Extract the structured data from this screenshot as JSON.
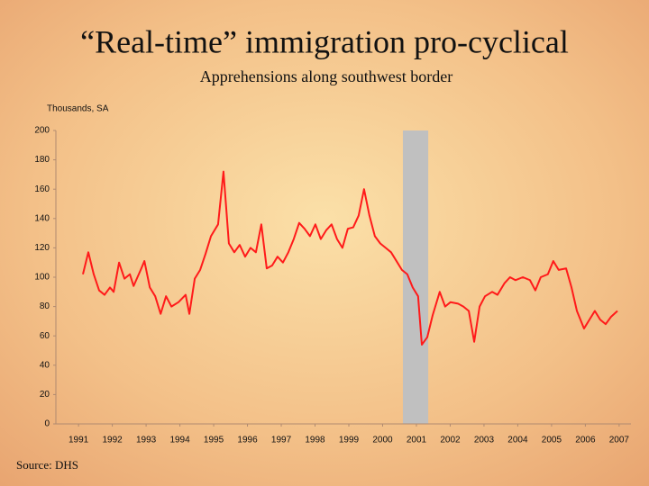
{
  "chart_data": {
    "type": "line",
    "title": "“Real-time” immigration pro-cyclical",
    "subtitle": "Apprehensions along southwest border",
    "y_label": "Thousands, SA",
    "source": "Source: DHS",
    "x": [
      1991.13,
      1991.29,
      1991.45,
      1991.61,
      1991.77,
      1991.93,
      1992.04,
      1992.2,
      1992.36,
      1992.52,
      1992.63,
      1992.84,
      1992.95,
      1993.11,
      1993.27,
      1993.43,
      1993.59,
      1993.75,
      1993.96,
      1994.17,
      1994.28,
      1994.44,
      1994.6,
      1994.76,
      1994.92,
      1995.13,
      1995.29,
      1995.45,
      1995.61,
      1995.77,
      1995.93,
      1996.09,
      1996.25,
      1996.41,
      1996.57,
      1996.73,
      1996.89,
      1997.05,
      1997.21,
      1997.37,
      1997.53,
      1997.69,
      1997.85,
      1998.01,
      1998.17,
      1998.33,
      1998.49,
      1998.65,
      1998.81,
      1998.97,
      1999.13,
      1999.29,
      1999.45,
      1999.61,
      1999.77,
      1999.93,
      2000.09,
      2000.25,
      2000.41,
      2000.57,
      2000.73,
      2000.89,
      2001.05,
      2001.16,
      2001.32,
      2001.48,
      2001.69,
      2001.85,
      2002.01,
      2002.23,
      2002.39,
      2002.55,
      2002.71,
      2002.87,
      2003.03,
      2003.24,
      2003.4,
      2003.61,
      2003.77,
      2003.93,
      2004.15,
      2004.36,
      2004.52,
      2004.68,
      2004.89,
      2005.05,
      2005.21,
      2005.43,
      2005.59,
      2005.75,
      2005.96,
      2006.12,
      2006.28,
      2006.44,
      2006.6,
      2006.76,
      2006.95
    ],
    "series": [
      {
        "name": "Apprehensions",
        "color": "#ff1a1a",
        "values": [
          102,
          117,
          102,
          91,
          88,
          93,
          90,
          110,
          99,
          102,
          94,
          105,
          111,
          93,
          87,
          75,
          87,
          80,
          83,
          88,
          75,
          99,
          105,
          116,
          128,
          136,
          172,
          123,
          117,
          122,
          114,
          120,
          117,
          136,
          106,
          108,
          114,
          110,
          117,
          126,
          137,
          133,
          128,
          136,
          126,
          132,
          136,
          126,
          120,
          133,
          134,
          142,
          160,
          142,
          128,
          123,
          120,
          117,
          111,
          105,
          102,
          93,
          87,
          54,
          59,
          74,
          90,
          80,
          83,
          82,
          80,
          77,
          56,
          80,
          87,
          90,
          88,
          96,
          100,
          98,
          100,
          98,
          91,
          100,
          102,
          111,
          105,
          106,
          93,
          77,
          65,
          71,
          77,
          71,
          68,
          73,
          77
        ]
      }
    ],
    "shaded_region": [
      2000.6,
      2001.35
    ],
    "shade_color": "#c0c0c0",
    "xlim": [
      1990.33,
      2007.35
    ],
    "xticks": [
      1991,
      1992,
      1993,
      1994,
      1995,
      1996,
      1997,
      1998,
      1999,
      2000,
      2001,
      2002,
      2003,
      2004,
      2005,
      2006,
      2007
    ],
    "ylim": [
      0,
      200
    ],
    "yticks": [
      0,
      20,
      40,
      60,
      80,
      100,
      120,
      140,
      160,
      180,
      200
    ],
    "grid": false
  }
}
